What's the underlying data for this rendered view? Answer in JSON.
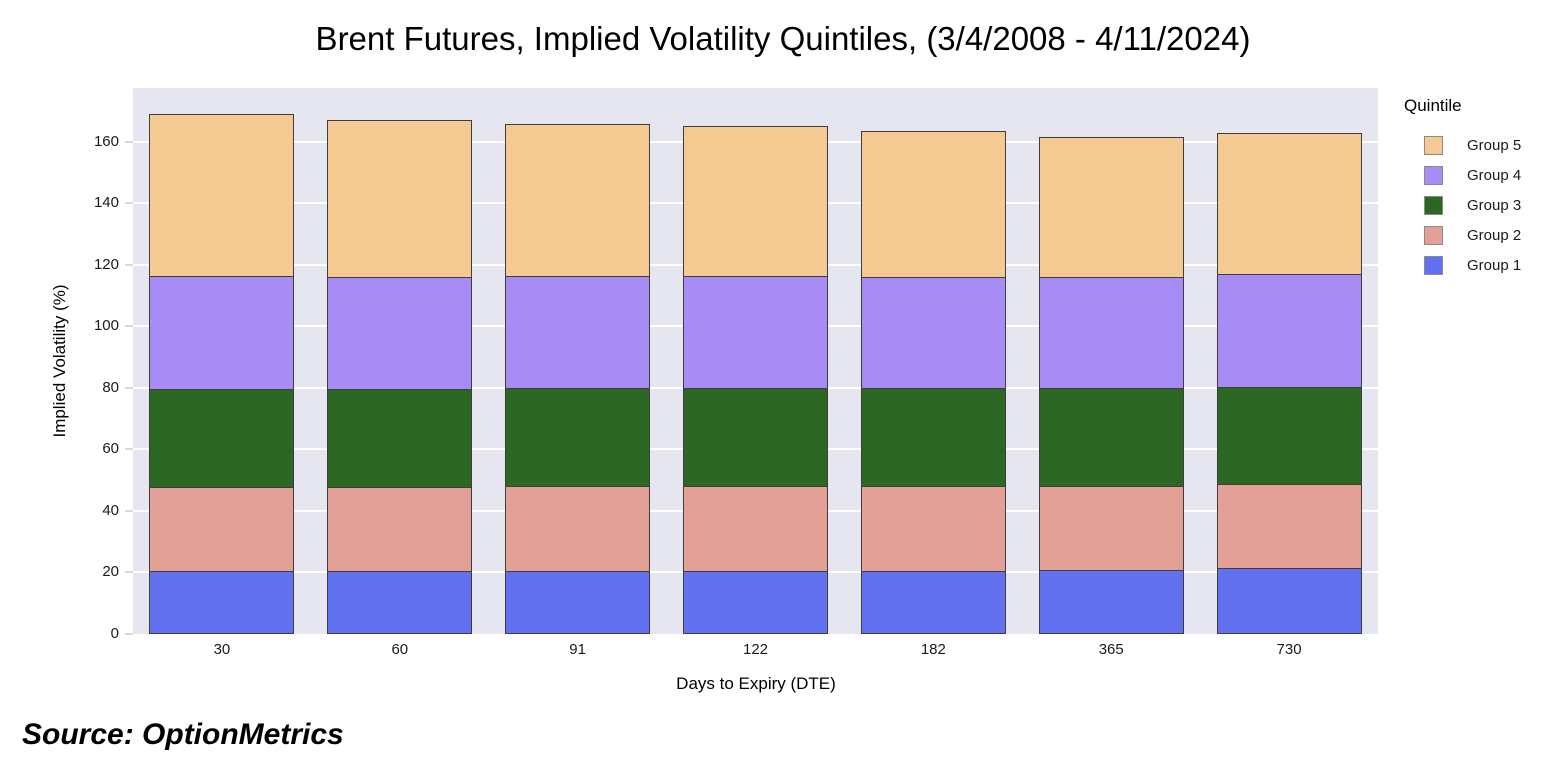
{
  "title": "Brent Futures, Implied Volatility Quintiles, (3/4/2008 - 4/11/2024)",
  "source": "Source: OptionMetrics",
  "legend": {
    "title": "Quintile",
    "entries": [
      {
        "label": "Group 5",
        "color": "#F5CA92"
      },
      {
        "label": "Group 4",
        "color": "#A78CF5"
      },
      {
        "label": "Group 3",
        "color": "#2C6724"
      },
      {
        "label": "Group 2",
        "color": "#E2A096"
      },
      {
        "label": "Group 1",
        "color": "#6271F0"
      }
    ]
  },
  "chart_data": {
    "type": "bar",
    "stacked": true,
    "title": "Brent Futures, Implied Volatility Quintiles, (3/4/2008 - 4/11/2024)",
    "xlabel": "Days to Expiry (DTE)",
    "ylabel": "Implied Volatility (%)",
    "categories": [
      "30",
      "60",
      "91",
      "122",
      "182",
      "365",
      "730"
    ],
    "yticks": [
      0,
      20,
      40,
      60,
      80,
      100,
      120,
      140,
      160
    ],
    "ylim": [
      0,
      177.5
    ],
    "grid": true,
    "plot_bg": "#E5E6F0",
    "bar_border_color": "#3d3d3d",
    "legend_position": "top-right",
    "series": [
      {
        "name": "Group 1",
        "color": "#6271F0",
        "values": [
          20.3,
          20.2,
          20.2,
          20.2,
          20.2,
          20.4,
          21.2
        ]
      },
      {
        "name": "Group 2",
        "color": "#E2A096",
        "values": [
          27.2,
          27.3,
          27.6,
          27.6,
          27.5,
          27.4,
          27.3
        ]
      },
      {
        "name": "Group 3",
        "color": "#2C6724",
        "values": [
          31.9,
          31.9,
          31.8,
          31.8,
          31.8,
          31.7,
          31.5
        ]
      },
      {
        "name": "Group 4",
        "color": "#A78CF5",
        "values": [
          36.6,
          36.5,
          36.5,
          36.5,
          36.4,
          36.4,
          36.6
        ]
      },
      {
        "name": "Group 5",
        "color": "#F5CA92",
        "values": [
          52.8,
          50.8,
          49.3,
          48.7,
          47.2,
          45.3,
          45.9
        ]
      }
    ],
    "stack_totals": [
      168.8,
      166.7,
      165.4,
      164.8,
      163.1,
      161.2,
      162.5
    ]
  }
}
